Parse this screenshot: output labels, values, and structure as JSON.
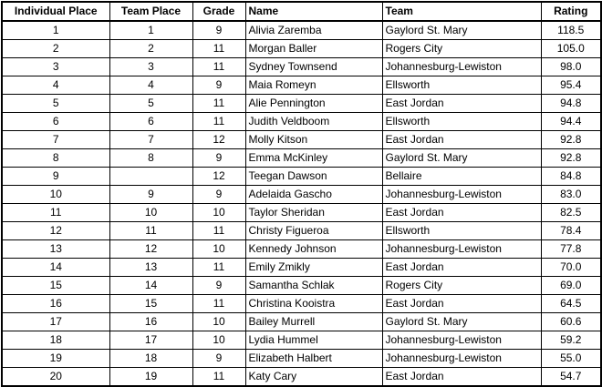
{
  "colors": {
    "border": "#000000",
    "text": "#000000",
    "background": "#ffffff"
  },
  "chart_data": {
    "type": "table",
    "headers": [
      "Individual Place",
      "Team Place",
      "Grade",
      "Name",
      "Team",
      "Rating"
    ],
    "rows": [
      [
        "1",
        "1",
        "9",
        "Alivia Zaremba",
        "Gaylord St. Mary",
        "118.5"
      ],
      [
        "2",
        "2",
        "11",
        "Morgan Baller",
        "Rogers City",
        "105.0"
      ],
      [
        "3",
        "3",
        "11",
        "Sydney Townsend",
        "Johannesburg-Lewiston",
        "98.0"
      ],
      [
        "4",
        "4",
        "9",
        "Maia Romeyn",
        "Ellsworth",
        "95.4"
      ],
      [
        "5",
        "5",
        "11",
        "Alie Pennington",
        "East Jordan",
        "94.8"
      ],
      [
        "6",
        "6",
        "11",
        "Judith Veldboom",
        "Ellsworth",
        "94.4"
      ],
      [
        "7",
        "7",
        "12",
        "Molly Kitson",
        "East Jordan",
        "92.8"
      ],
      [
        "8",
        "8",
        "9",
        "Emma McKinley",
        "Gaylord St. Mary",
        "92.8"
      ],
      [
        "9",
        "",
        "12",
        "Teegan Dawson",
        "Bellaire",
        "84.8"
      ],
      [
        "10",
        "9",
        "9",
        "Adelaida Gascho",
        "Johannesburg-Lewiston",
        "83.0"
      ],
      [
        "11",
        "10",
        "10",
        "Taylor Sheridan",
        "East Jordan",
        "82.5"
      ],
      [
        "12",
        "11",
        "11",
        "Christy Figueroa",
        "Ellsworth",
        "78.4"
      ],
      [
        "13",
        "12",
        "10",
        "Kennedy Johnson",
        "Johannesburg-Lewiston",
        "77.8"
      ],
      [
        "14",
        "13",
        "11",
        "Emily Zmikly",
        "East Jordan",
        "70.0"
      ],
      [
        "15",
        "14",
        "9",
        "Samantha Schlak",
        "Rogers City",
        "69.0"
      ],
      [
        "16",
        "15",
        "11",
        "Christina Kooistra",
        "East Jordan",
        "64.5"
      ],
      [
        "17",
        "16",
        "10",
        "Bailey Murrell",
        "Gaylord St. Mary",
        "60.6"
      ],
      [
        "18",
        "17",
        "10",
        "Lydia Hummel",
        "Johannesburg-Lewiston",
        "59.2"
      ],
      [
        "19",
        "18",
        "9",
        "Elizabeth Halbert",
        "Johannesburg-Lewiston",
        "55.0"
      ],
      [
        "20",
        "19",
        "11",
        "Katy Cary",
        "East Jordan",
        "54.7"
      ]
    ]
  }
}
